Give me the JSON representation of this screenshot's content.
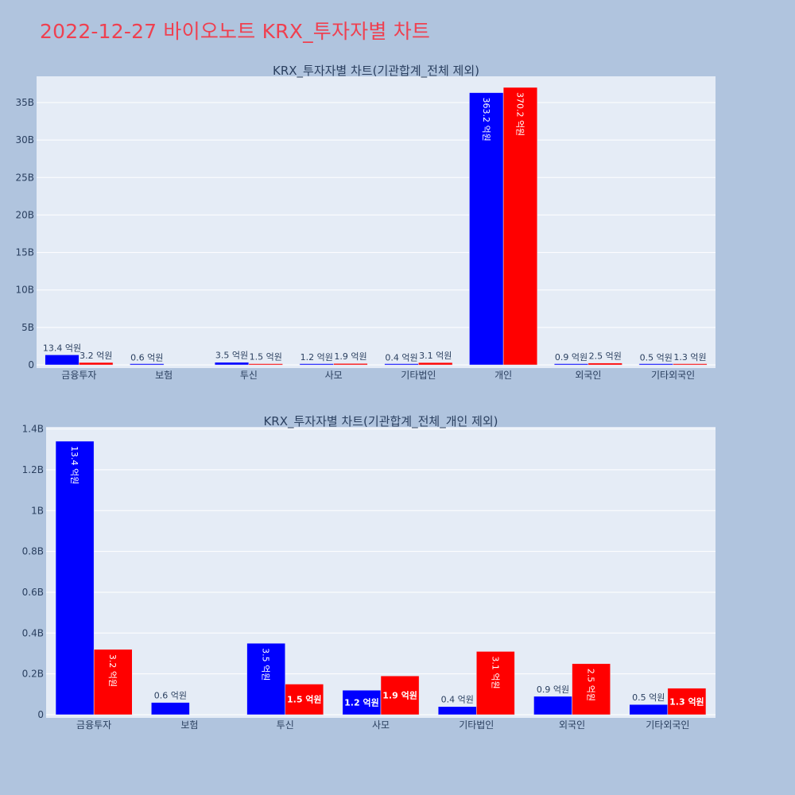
{
  "page_title": "2022-12-27 바이오노트 KRX_투자자별 차트",
  "colors": {
    "series_a": "#0000ff",
    "series_b": "#ff0000",
    "plot_bg": "#e5ecf6",
    "paper_bg": "#b0c4de",
    "title": "#ef4050",
    "text": "#2a3f5f"
  },
  "chart_data": [
    {
      "type": "bar",
      "title": "KRX_투자자별 차트(기관합계_전체 제외)",
      "categories": [
        "금융투자",
        "보험",
        "투신",
        "사모",
        "기타법인",
        "개인",
        "외국인",
        "기타외국인"
      ],
      "ylim": [
        0,
        38500000000
      ],
      "yticks": [
        0,
        5000000000,
        10000000000,
        15000000000,
        20000000000,
        25000000000,
        30000000000,
        35000000000
      ],
      "ytick_labels": [
        "0",
        "5B",
        "10B",
        "15B",
        "20B",
        "25B",
        "30B",
        "35B"
      ],
      "series": [
        {
          "values": [
            1340000000,
            60000000,
            350000000,
            120000000,
            40000000,
            36320000000,
            90000000,
            50000000
          ],
          "labels": [
            "13.4 억원",
            "0.6 억원",
            "3.5 억원",
            "1.2 억원",
            "0.4 억원",
            "363.2 억원",
            "0.9 억원",
            "0.5 억원"
          ]
        },
        {
          "values": [
            320000000,
            0,
            150000000,
            190000000,
            310000000,
            37020000000,
            250000000,
            130000000
          ],
          "labels": [
            "3.2 억원",
            "",
            "1.5 억원",
            "1.9 억원",
            "3.1 억원",
            "370.2 억원",
            "2.5 억원",
            "1.3 억원"
          ]
        }
      ]
    },
    {
      "type": "bar",
      "title": "KRX_투자자별 차트(기관합계_전체_개인 제외)",
      "categories": [
        "금융투자",
        "보험",
        "투신",
        "사모",
        "기타법인",
        "외국인",
        "기타외국인"
      ],
      "ylim": [
        0,
        1410000000
      ],
      "yticks": [
        0,
        200000000,
        400000000,
        600000000,
        800000000,
        1000000000,
        1200000000,
        1400000000
      ],
      "ytick_labels": [
        "0",
        "0.2B",
        "0.4B",
        "0.6B",
        "0.8B",
        "1B",
        "1.2B",
        "1.4B"
      ],
      "series": [
        {
          "values": [
            1340000000,
            60000000,
            350000000,
            120000000,
            40000000,
            90000000,
            50000000
          ],
          "labels": [
            "13.4 억원",
            "0.6 억원",
            "3.5 억원",
            "1.2 억원",
            "0.4 억원",
            "0.9 억원",
            "0.5 억원"
          ]
        },
        {
          "values": [
            320000000,
            0,
            150000000,
            190000000,
            310000000,
            250000000,
            130000000
          ],
          "labels": [
            "3.2 억원",
            "",
            "1.5 억원",
            "1.9 억원",
            "3.1 억원",
            "2.5 억원",
            "1.3 억원"
          ]
        }
      ]
    }
  ]
}
